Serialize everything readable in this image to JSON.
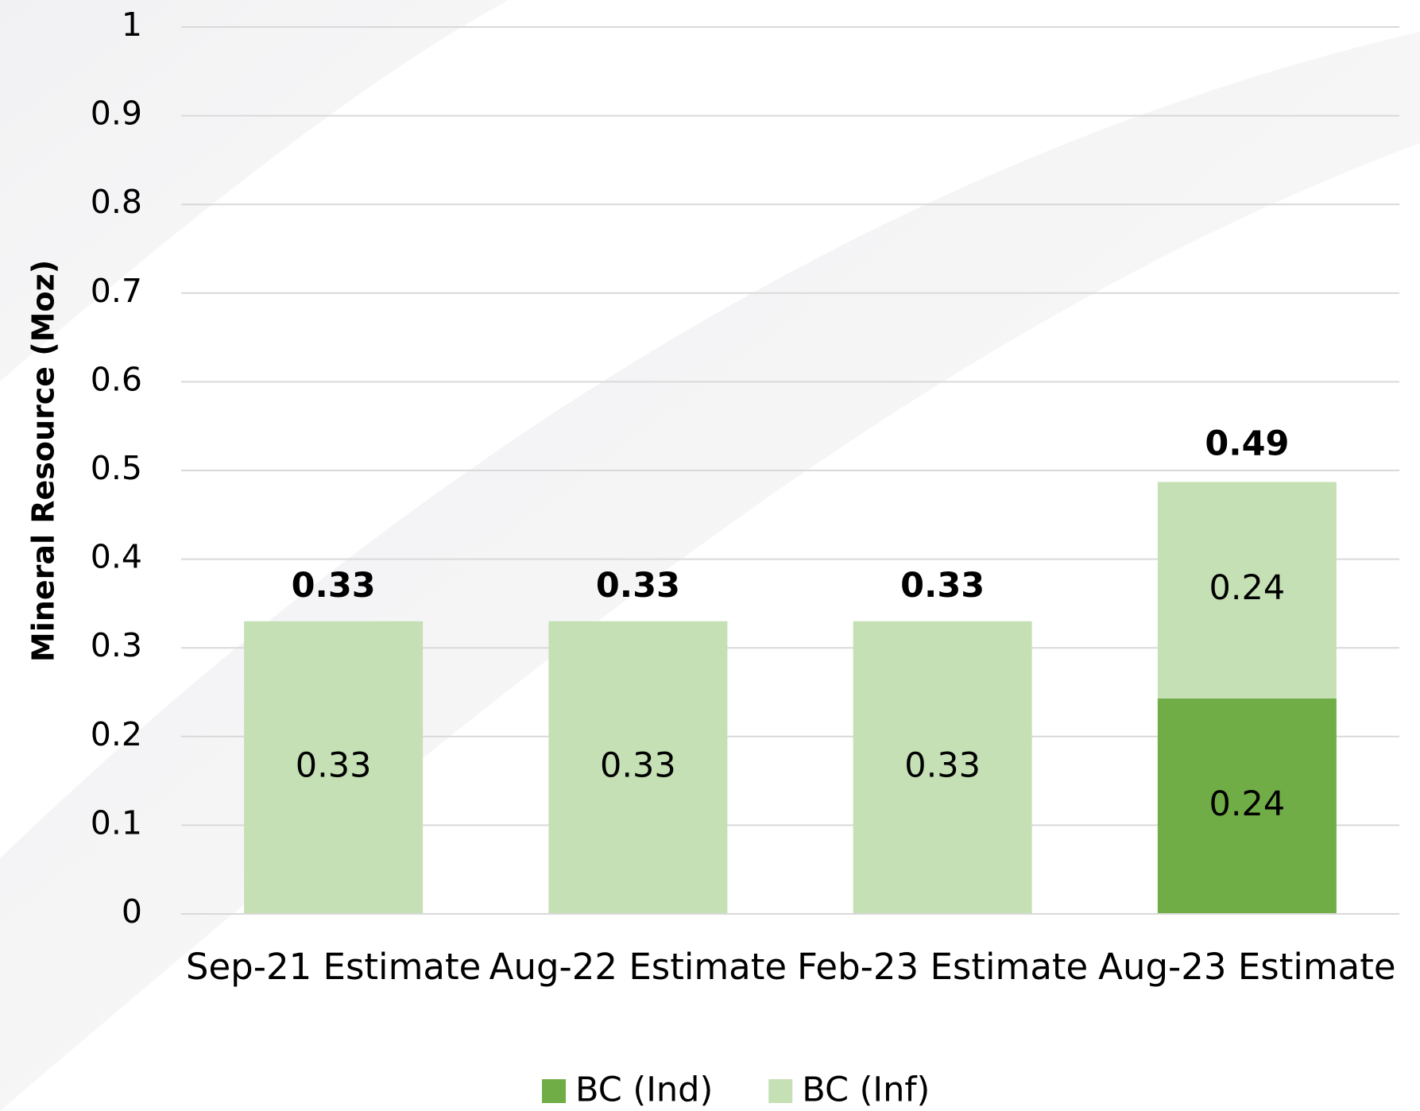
{
  "chart_data": {
    "type": "stacked_bar",
    "y_label": "Mineral Resource (Moz)",
    "categories": [
      "Sep-21 Estimate",
      "Aug-22 Estimate",
      "Feb-23 Estimate",
      "Aug-23 Estimate"
    ],
    "series": [
      {
        "name": "BC (Ind)",
        "color": "#70ad47",
        "values": [
          null,
          null,
          null,
          0.243
        ],
        "value_labels": [
          null,
          null,
          null,
          "0.24"
        ]
      },
      {
        "name": "BC (Inf)",
        "color": "#c5e0b4",
        "values": [
          0.33,
          0.33,
          0.33,
          0.244
        ],
        "value_labels": [
          "0.33",
          "0.33",
          "0.33",
          "0.24"
        ]
      }
    ],
    "totals": [
      0.33,
      0.33,
      0.33,
      0.49
    ],
    "ylim": [
      0,
      1
    ],
    "yticks": [
      0,
      0.1,
      0.2,
      0.3,
      0.4,
      0.5,
      0.6,
      0.7,
      0.8,
      0.9,
      1
    ],
    "grid": true,
    "legend": "bottom"
  }
}
